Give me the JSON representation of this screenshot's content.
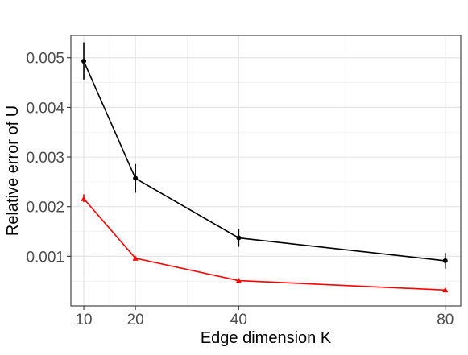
{
  "chart_data": {
    "type": "line",
    "title": "",
    "xlabel": "Edge dimension K",
    "ylabel": "Relative error of U",
    "x_ticks": [
      10,
      20,
      40,
      80
    ],
    "y_ticks": [
      0.001,
      0.002,
      0.003,
      0.004,
      0.005
    ],
    "x_tick_labels": [
      "10",
      "20",
      "40",
      "80"
    ],
    "y_tick_labels": [
      "0.001",
      "0.002",
      "0.003",
      "0.004",
      "0.005"
    ],
    "xlim": [
      7.5,
      83
    ],
    "ylim": [
      0.0,
      0.00545
    ],
    "grid": true,
    "legend": "none",
    "series": [
      {
        "color": "#000000",
        "marker": "circle",
        "x": [
          10,
          20,
          40,
          80
        ],
        "y": [
          0.00493,
          0.00257,
          0.00137,
          0.00091
        ],
        "err_low": [
          0.00456,
          0.00228,
          0.00119,
          0.00075
        ],
        "err_high": [
          0.00531,
          0.00286,
          0.00155,
          0.00107
        ]
      },
      {
        "color": "#ff0000",
        "marker": "triangle",
        "x": [
          10,
          20,
          40,
          80
        ],
        "y": [
          0.00216,
          0.00096,
          0.00051,
          0.00032
        ],
        "err_low": [
          0.00209,
          0.00094,
          0.0005,
          0.00031
        ],
        "err_high": [
          0.00225,
          0.00098,
          0.00052,
          0.00033
        ]
      }
    ]
  }
}
